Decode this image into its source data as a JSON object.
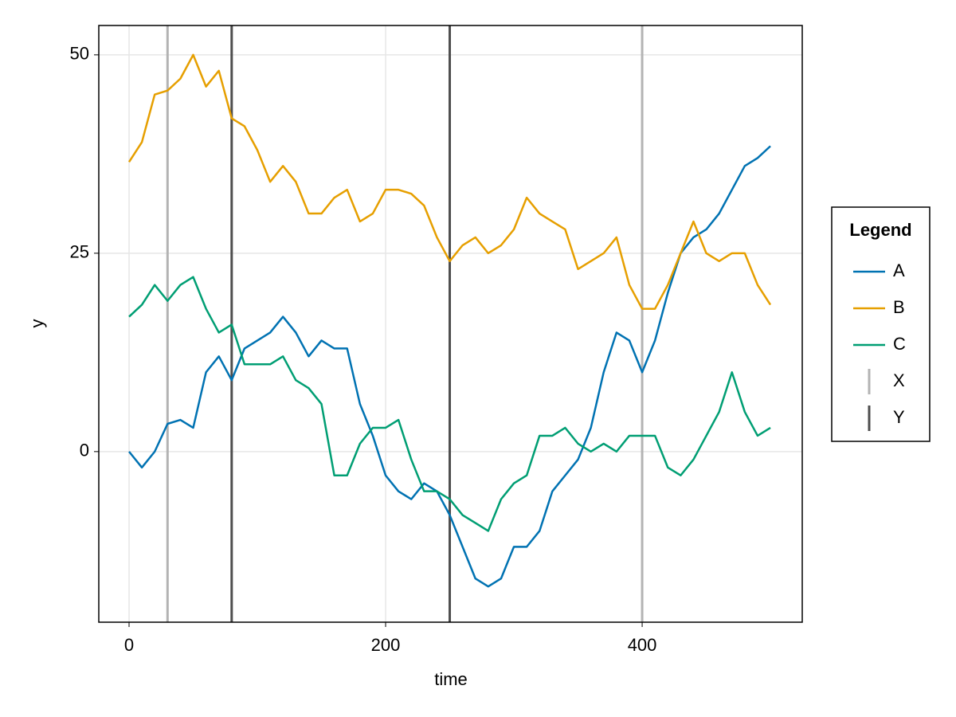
{
  "chart_data": {
    "type": "line",
    "xlabel": "time",
    "ylabel": "y",
    "x": [
      0,
      10,
      20,
      30,
      40,
      50,
      60,
      70,
      80,
      90,
      100,
      110,
      120,
      130,
      140,
      150,
      160,
      170,
      180,
      190,
      200,
      210,
      220,
      230,
      240,
      250,
      260,
      270,
      280,
      290,
      300,
      310,
      320,
      330,
      340,
      350,
      360,
      370,
      380,
      390,
      400,
      410,
      420,
      430,
      440,
      450,
      460,
      470,
      480,
      490,
      500
    ],
    "series": [
      {
        "name": "A",
        "color": "#0072b2",
        "values": [
          0,
          -2,
          0,
          3.5,
          4,
          3,
          10,
          12,
          9,
          13,
          14,
          15,
          17,
          15,
          12,
          14,
          13,
          13,
          6,
          2,
          -3,
          -5,
          -6,
          -4,
          -5,
          -8,
          -12,
          -16,
          -17,
          -16,
          -12,
          -12,
          -10,
          -5,
          -3,
          -1,
          3,
          10,
          15,
          14,
          10,
          14,
          20,
          25,
          27,
          28,
          30,
          33,
          36,
          37,
          38.5
        ]
      },
      {
        "name": "B",
        "color": "#e69f00",
        "values": [
          36.5,
          39,
          45,
          45.5,
          47,
          50,
          46,
          48,
          42,
          41,
          38,
          34,
          36,
          34,
          30,
          30,
          32,
          33,
          29,
          30,
          33,
          33,
          32.5,
          31,
          27,
          24,
          26,
          27,
          25,
          26,
          28,
          32,
          30,
          29,
          28,
          23,
          24,
          25,
          27,
          21,
          18,
          18,
          21,
          25,
          29,
          25,
          24,
          25,
          25,
          21,
          18.5
        ]
      },
      {
        "name": "C",
        "color": "#009e73",
        "values": [
          17,
          18.5,
          21,
          19,
          21,
          22,
          18,
          15,
          16,
          11,
          11,
          11,
          12,
          9,
          8,
          6,
          -3,
          -3,
          1,
          3,
          3,
          4,
          -1,
          -5,
          -5,
          -6,
          -8,
          -9,
          -10,
          -6,
          -4,
          -3,
          2,
          2,
          3,
          1,
          0,
          1,
          0,
          2,
          2,
          2,
          -2,
          -3,
          -1,
          2,
          5,
          10,
          5,
          2,
          3
        ]
      }
    ],
    "vlines": [
      {
        "name": "X",
        "color": "#b3b3b3",
        "values": [
          30,
          400
        ]
      },
      {
        "name": "Y",
        "color": "#4d4d4d",
        "values": [
          80,
          250
        ]
      }
    ],
    "legend_title": "Legend",
    "legend": "right",
    "xlim": [
      -23.6,
      524.8
    ],
    "ylim": [
      -21.5,
      53.7
    ],
    "xticks": [
      0,
      200,
      400
    ],
    "yticks": [
      0,
      25,
      50
    ],
    "grid": true
  }
}
